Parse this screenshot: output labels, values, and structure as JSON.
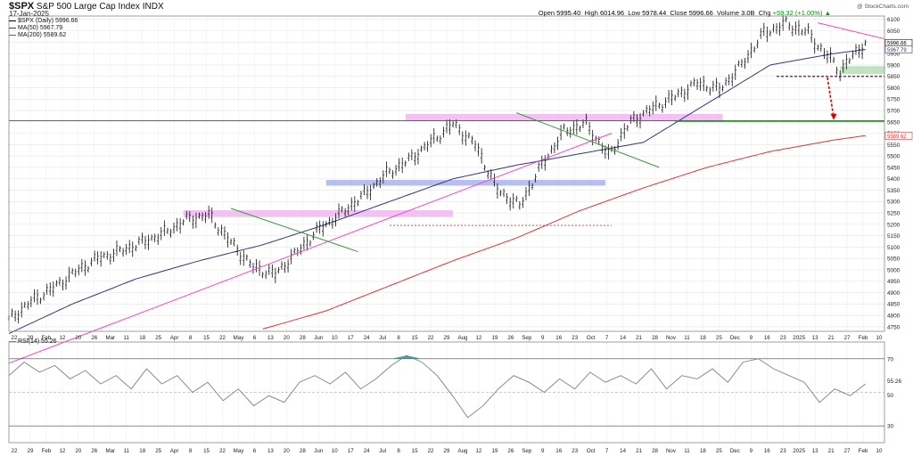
{
  "header": {
    "symbol": "$SPX",
    "name": "S&P 500 Large Cap Index",
    "exchange": "INDX",
    "date": "17-Jan-2025",
    "logo": "@ StockCharts.com"
  },
  "ohlc": {
    "open_label": "Open",
    "open": "5995.40",
    "high_label": "High",
    "high": "6014.96",
    "low_label": "Low",
    "low": "5978.44",
    "close_label": "Close",
    "close": "5996.66",
    "volume_label": "Volume",
    "volume": "3.0B",
    "chg_label": "Chg",
    "chg": "+59.32 (+1.00%)",
    "up_arrow": "▲"
  },
  "legend": {
    "price": "$SPX (Daily) 5996.66",
    "ma50": "MA(50) 5967.79",
    "ma200": "MA(200) 5589.62"
  },
  "rsi_label": "RSI(14) 55.26",
  "colors": {
    "ma50": "#2e3a7a",
    "ma200": "#d43a3a",
    "trend": "#ee44cc",
    "zone_pink": "#f0b8f0",
    "zone_blue": "#aab4ee",
    "zone_green": "#b8dcb8",
    "green_line": "#3a9a3a",
    "resistance": "#cc2222",
    "arrow": "#dd0000",
    "rsi": "#7a8090",
    "rsi_fill": "#3f8a8a"
  },
  "chart_data": {
    "type": "line",
    "title": "$SPX S&P 500 Large Cap Index INDX",
    "x_ticks": [
      "22",
      "29",
      "Feb",
      "12",
      "20",
      "26",
      "Mar",
      "11",
      "18",
      "25",
      "Apr",
      "8",
      "15",
      "22",
      "May",
      "6",
      "13",
      "20",
      "28",
      "Jun",
      "10",
      "17",
      "24",
      "Jul",
      "8",
      "15",
      "22",
      "29",
      "Aug",
      "12",
      "19",
      "26",
      "Sep",
      "9",
      "16",
      "23",
      "Oct",
      "7",
      "14",
      "21",
      "28",
      "Nov",
      "11",
      "18",
      "25",
      "Dec",
      "9",
      "16",
      "23",
      "2025",
      "13",
      "21",
      "27",
      "Feb",
      "10"
    ],
    "y_ticks": [
      4750,
      4800,
      4850,
      4900,
      4950,
      5000,
      5050,
      5100,
      5150,
      5200,
      5250,
      5300,
      5350,
      5400,
      5450,
      5500,
      5550,
      5600,
      5650,
      5700,
      5750,
      5800,
      5850,
      5900,
      5950,
      6000,
      6050,
      6100
    ],
    "ylim": [
      4730,
      6115
    ],
    "price_tags": [
      "5996.66",
      "5967.79",
      "5589.62"
    ],
    "grid": true,
    "series": [
      {
        "name": "$SPX (Daily) 5996.66",
        "x": [
          0,
          7,
          14,
          21,
          28,
          35,
          42,
          49,
          56,
          63,
          70,
          77,
          84,
          91,
          98,
          105,
          112,
          119,
          126,
          133,
          140,
          147,
          154,
          161,
          168,
          175,
          182,
          189,
          196,
          203,
          210,
          217,
          224,
          231,
          238,
          245,
          252,
          257,
          259,
          262,
          266,
          270
        ],
        "values": [
          4780,
          4860,
          4920,
          4990,
          5050,
          5080,
          5120,
          5160,
          5220,
          5240,
          5120,
          5010,
          4980,
          5080,
          5180,
          5250,
          5330,
          5420,
          5480,
          5560,
          5640,
          5550,
          5350,
          5280,
          5460,
          5610,
          5640,
          5500,
          5650,
          5710,
          5760,
          5820,
          5790,
          5900,
          6040,
          6080,
          6040,
          5950,
          5930,
          5870,
          5940,
          5997
        ]
      },
      {
        "name": "MA(50) 5967.79",
        "x": [
          0,
          20,
          40,
          60,
          80,
          100,
          120,
          140,
          160,
          180,
          200,
          220,
          240,
          260,
          270
        ],
        "values": [
          4720,
          4850,
          4960,
          5040,
          5110,
          5200,
          5300,
          5400,
          5460,
          5510,
          5560,
          5730,
          5900,
          5950,
          5968
        ]
      },
      {
        "name": "MA(200) 5589.62",
        "x": [
          80,
          100,
          120,
          140,
          160,
          180,
          200,
          220,
          240,
          260,
          270
        ],
        "values": [
          4740,
          4820,
          4930,
          5040,
          5140,
          5260,
          5360,
          5450,
          5520,
          5570,
          5590
        ]
      }
    ],
    "annotations": {
      "resistance_level": 5655,
      "support_level": 5850,
      "trend_upper": [
        [
          180,
          5940
        ],
        [
          255,
          6085
        ],
        [
          276,
          6015
        ]
      ]
    },
    "rsi": {
      "name": "RSI(14) 55.26",
      "ylim": [
        20,
        80
      ],
      "levels": [
        30,
        50,
        70
      ],
      "level_tags": [
        "70",
        "55.26",
        "50",
        "30"
      ],
      "values": [
        60,
        68,
        62,
        66,
        58,
        63,
        55,
        60,
        52,
        64,
        55,
        60,
        50,
        56,
        45,
        52,
        42,
        48,
        44,
        56,
        60,
        55,
        62,
        52,
        58,
        66,
        72,
        68,
        60,
        48,
        35,
        42,
        52,
        60,
        56,
        50,
        58,
        52,
        62,
        56,
        60,
        55,
        64,
        52,
        60,
        58,
        64,
        56,
        68,
        70,
        64,
        60,
        56,
        44,
        52,
        48,
        55
      ]
    }
  }
}
